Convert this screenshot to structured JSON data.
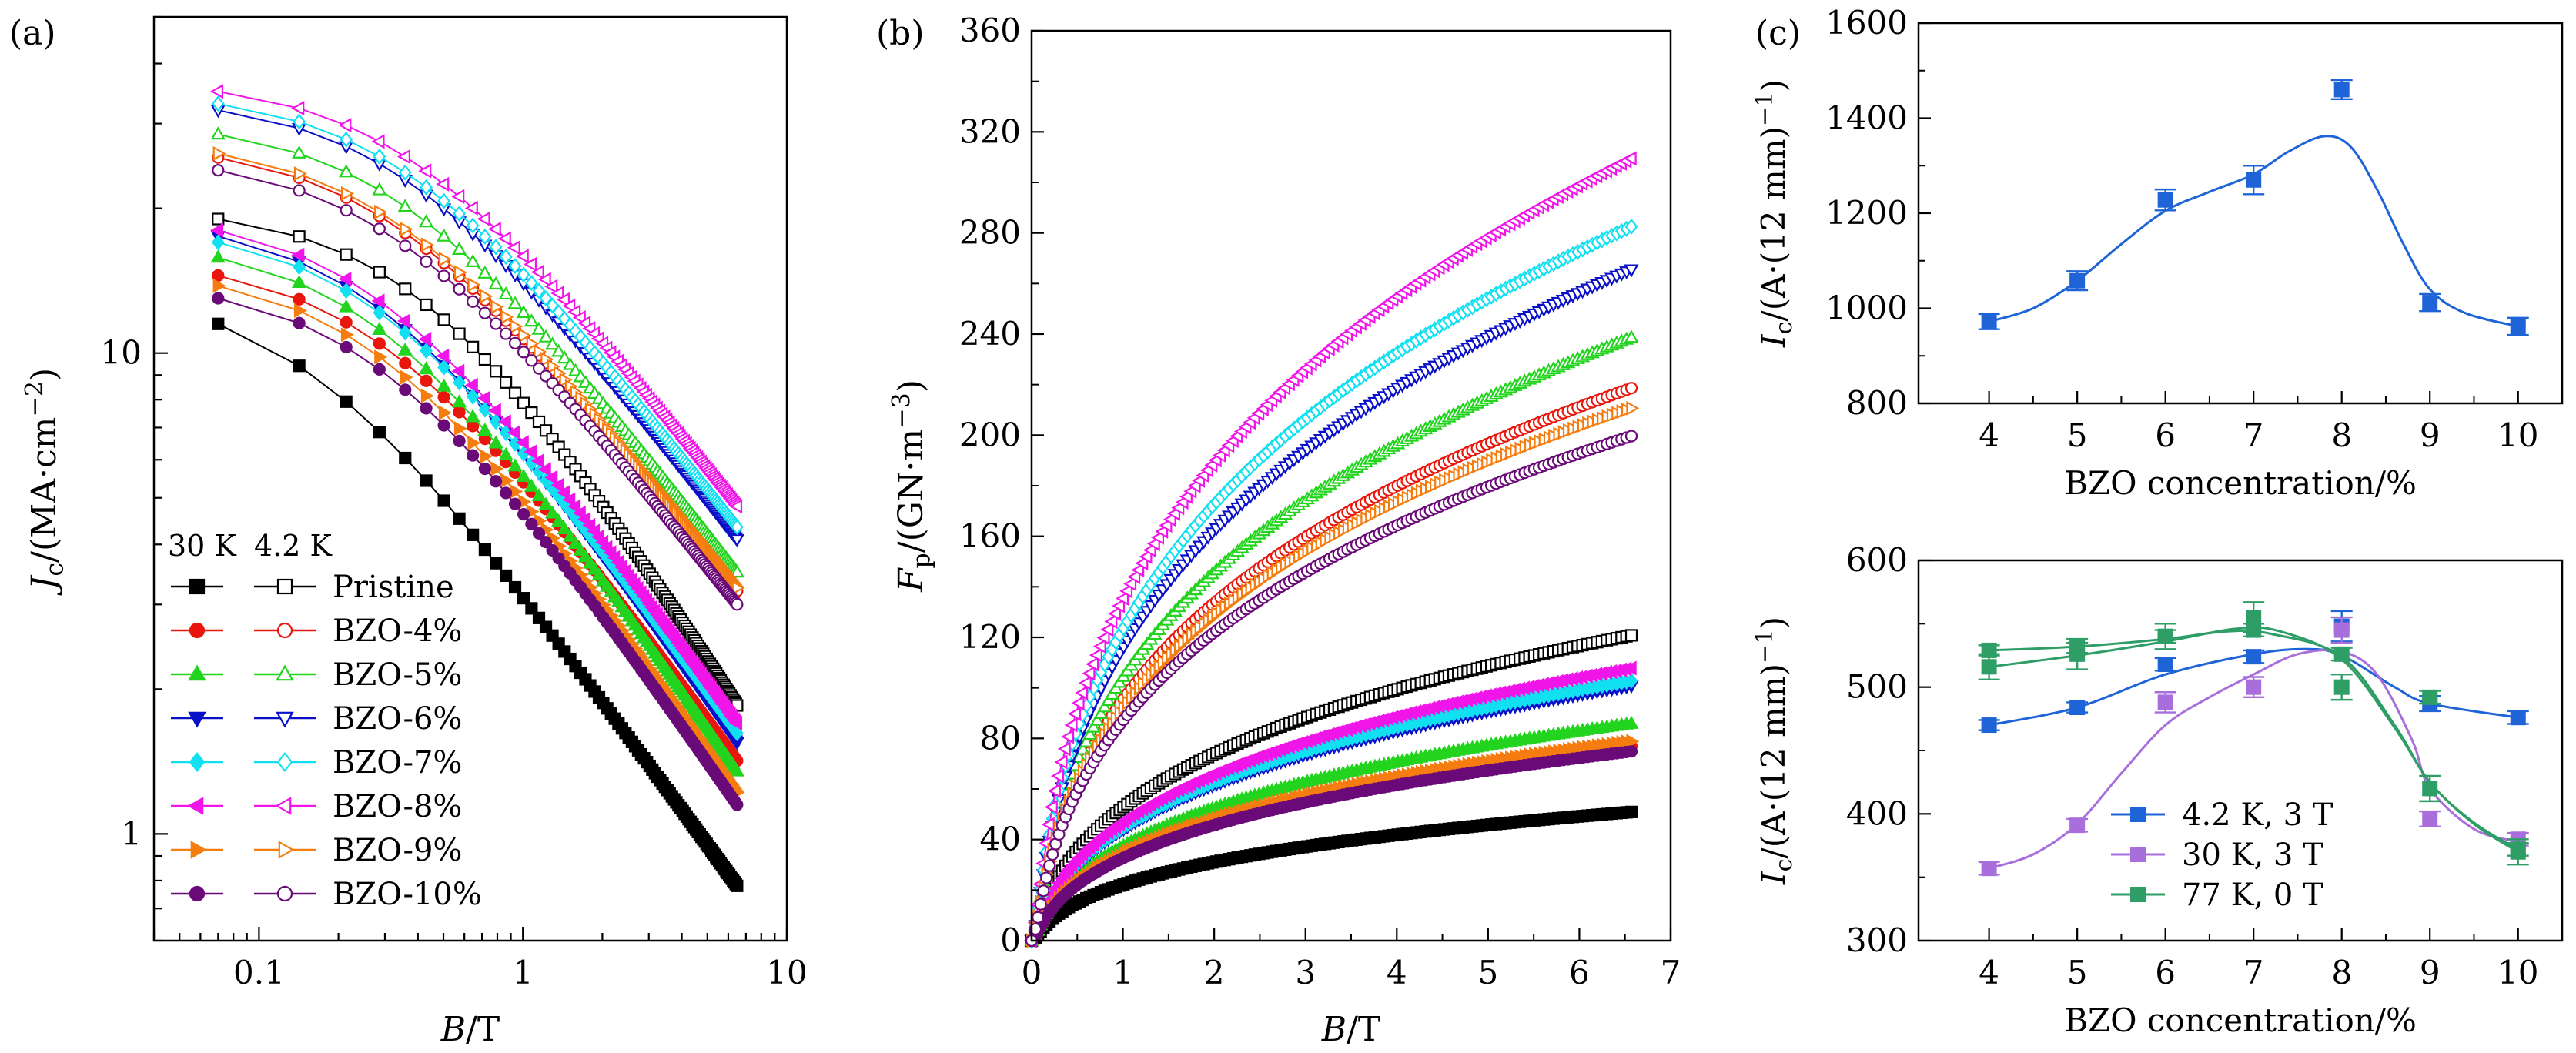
{
  "figure": {
    "panels": [
      "(a)",
      "(b)",
      "(c)"
    ]
  },
  "chart_data": [
    {
      "id": "a",
      "type": "line",
      "panel_label": "(a)",
      "xlabel_main": "B",
      "xlabel_unit": "/T",
      "ylabel_main": "J",
      "ylabel_sub": "c",
      "ylabel_unit": "/(MA·cm",
      "ylabel_sup": "−2",
      "ylabel_close": ")",
      "xscale": "log",
      "yscale": "log",
      "xlim": [
        0.04,
        10
      ],
      "ylim": [
        0.6,
        50
      ],
      "xticks": [
        {
          "v": 0.1,
          "label": "0.1"
        },
        {
          "v": 1,
          "label": "1"
        },
        {
          "v": 10,
          "label": "10"
        }
      ],
      "yticks": [
        {
          "v": 1,
          "label": "1"
        },
        {
          "v": 10,
          "label": "10"
        }
      ],
      "legend": {
        "position": "bottom-left",
        "header_left": "30 K",
        "header_right": "4.2 K"
      },
      "series": [
        {
          "name": "Pristine",
          "color": "#000000",
          "marker": "square",
          "jc30": {
            "a": 11.5,
            "b": 1.95,
            "k0": 0.15,
            "end": 0.78
          },
          "jc42": {
            "a": 19,
            "b": 2.65,
            "k0": 0.42,
            "end": 1.85
          }
        },
        {
          "name": "BZO-4%",
          "color": "#e8160c",
          "marker": "circle",
          "jc30": {
            "a": 14.5,
            "b": 3.0,
            "k0": 0.28,
            "end": 1.42
          },
          "jc42": {
            "a": 25.5,
            "b": 3.5,
            "k0": 0.3,
            "end": 3.2
          }
        },
        {
          "name": "BZO-5%",
          "color": "#22d41e",
          "marker": "triangle-up",
          "jc30": {
            "a": 15.8,
            "b": 2.7,
            "k0": 0.28,
            "end": 1.35
          },
          "jc42": {
            "a": 28.5,
            "b": 3.3,
            "k0": 0.33,
            "end": 3.5
          }
        },
        {
          "name": "BZO-6%",
          "color": "#0a10c8",
          "marker": "triangle-down",
          "jc30": {
            "a": 17.5,
            "b": 2.85,
            "k0": 0.27,
            "end": 1.55
          },
          "jc42": {
            "a": 32,
            "b": 3.4,
            "k0": 0.34,
            "end": 4.1
          }
        },
        {
          "name": "BZO-7%",
          "color": "#11e0f0",
          "marker": "diamond",
          "jc30": {
            "a": 17,
            "b": 2.85,
            "k0": 0.27,
            "end": 1.62
          },
          "jc42": {
            "a": 33,
            "b": 3.4,
            "k0": 0.34,
            "end": 4.35
          }
        },
        {
          "name": "BZO-8%",
          "color": "#f015e8",
          "marker": "triangle-left",
          "jc30": {
            "a": 18,
            "b": 2.85,
            "k0": 0.27,
            "end": 1.7
          },
          "jc42": {
            "a": 35,
            "b": 3.35,
            "k0": 0.36,
            "end": 4.8
          }
        },
        {
          "name": "BZO-9%",
          "color": "#f57d10",
          "marker": "triangle-right",
          "jc30": {
            "a": 13.8,
            "b": 2.95,
            "k0": 0.28,
            "end": 1.22
          },
          "jc42": {
            "a": 26,
            "b": 3.5,
            "k0": 0.3,
            "end": 3.25
          }
        },
        {
          "name": "BZO-10%",
          "color": "#6a0a78",
          "marker": "circle",
          "jc30": {
            "a": 13,
            "b": 2.9,
            "k0": 0.28,
            "end": 1.15
          },
          "jc42": {
            "a": 24,
            "b": 3.5,
            "k0": 0.3,
            "end": 3.0
          }
        }
      ]
    },
    {
      "id": "b",
      "type": "line",
      "panel_label": "(b)",
      "xlabel_main": "B",
      "xlabel_unit": "/T",
      "ylabel_main": "F",
      "ylabel_sub": "p",
      "ylabel_unit": "/(GN·m",
      "ylabel_sup": "−3",
      "ylabel_close": ")",
      "xlim": [
        0,
        7
      ],
      "ylim": [
        0,
        360
      ],
      "xticks": [
        0,
        1,
        2,
        3,
        4,
        5,
        6,
        7
      ],
      "yticks": [
        0,
        40,
        80,
        120,
        160,
        200,
        240,
        280,
        320,
        360
      ],
      "series": [
        {
          "name": "Pristine",
          "temp": "30 K",
          "color": "#000000",
          "marker": "square",
          "filled": true,
          "fp_end": 51
        },
        {
          "name": "Pristine",
          "temp": "4.2 K",
          "color": "#000000",
          "marker": "square",
          "filled": false,
          "fp_end": 121
        },
        {
          "name": "BZO-4%",
          "temp": "30 K",
          "color": "#e8160c",
          "marker": "circle",
          "filled": true,
          "fp_end": 77
        },
        {
          "name": "BZO-4%",
          "temp": "4.2 K",
          "color": "#e8160c",
          "marker": "circle",
          "filled": false,
          "fp_end": 219
        },
        {
          "name": "BZO-5%",
          "temp": "30 K",
          "color": "#22d41e",
          "marker": "triangle-up",
          "filled": true,
          "fp_end": 86
        },
        {
          "name": "BZO-5%",
          "temp": "4.2 K",
          "color": "#22d41e",
          "marker": "triangle-up",
          "filled": false,
          "fp_end": 239
        },
        {
          "name": "BZO-6%",
          "temp": "30 K",
          "color": "#0a10c8",
          "marker": "triangle-down",
          "filled": true,
          "fp_end": 101
        },
        {
          "name": "BZO-6%",
          "temp": "4.2 K",
          "color": "#0a10c8",
          "marker": "triangle-down",
          "filled": false,
          "fp_end": 266
        },
        {
          "name": "BZO-7%",
          "temp": "30 K",
          "color": "#11e0f0",
          "marker": "diamond",
          "filled": true,
          "fp_end": 103
        },
        {
          "name": "BZO-7%",
          "temp": "4.2 K",
          "color": "#11e0f0",
          "marker": "diamond",
          "filled": false,
          "fp_end": 283
        },
        {
          "name": "BZO-8%",
          "temp": "30 K",
          "color": "#f015e8",
          "marker": "triangle-left",
          "filled": true,
          "fp_end": 108
        },
        {
          "name": "BZO-8%",
          "temp": "4.2 K",
          "color": "#f015e8",
          "marker": "triangle-left",
          "filled": false,
          "fp_end": 310
        },
        {
          "name": "BZO-9%",
          "temp": "30 K",
          "color": "#f57d10",
          "marker": "triangle-right",
          "filled": true,
          "fp_end": 79
        },
        {
          "name": "BZO-9%",
          "temp": "4.2 K",
          "color": "#f57d10",
          "marker": "triangle-right",
          "filled": false,
          "fp_end": 211
        },
        {
          "name": "BZO-10%",
          "temp": "30 K",
          "color": "#6a0a78",
          "marker": "circle",
          "filled": true,
          "fp_end": 75
        },
        {
          "name": "BZO-10%",
          "temp": "4.2 K",
          "color": "#6a0a78",
          "marker": "circle",
          "filled": false,
          "fp_end": 200
        }
      ]
    },
    {
      "id": "c_top",
      "type": "scatter",
      "panel_label": "(c)",
      "xlabel": "BZO  concentration/%",
      "ylabel_main": "I",
      "ylabel_sub": "c",
      "ylabel_unit": "/(A·(12 mm)",
      "ylabel_sup": "−1",
      "ylabel_close": ")",
      "xlim": [
        3.2,
        10.5
      ],
      "ylim": [
        800,
        1600
      ],
      "xticks": [
        4,
        5,
        6,
        7,
        8,
        9,
        10
      ],
      "yticks": [
        800,
        1000,
        1200,
        1400,
        1600
      ],
      "series": [
        {
          "color": "#1f64d6",
          "x": [
            4,
            5,
            6,
            7,
            8,
            9,
            10
          ],
          "y": [
            972,
            1058,
            1228,
            1270,
            1460,
            1012,
            962
          ],
          "err": [
            16,
            20,
            22,
            30,
            20,
            18,
            18
          ],
          "fit": [
            [
              4,
              972
            ],
            [
              4.5,
              1000
            ],
            [
              5,
              1058
            ],
            [
              5.5,
              1135
            ],
            [
              6,
              1205
            ],
            [
              6.5,
              1245
            ],
            [
              7,
              1282
            ],
            [
              7.4,
              1330
            ],
            [
              7.8,
              1362
            ],
            [
              8.1,
              1340
            ],
            [
              8.4,
              1250
            ],
            [
              8.7,
              1135
            ],
            [
              9,
              1040
            ],
            [
              9.4,
              990
            ],
            [
              10,
              962
            ]
          ]
        }
      ]
    },
    {
      "id": "c_bottom",
      "type": "scatter",
      "xlabel": "BZO  concentration/%",
      "ylabel_main": "I",
      "ylabel_sub": "c",
      "ylabel_unit": "/(A·(12 mm)",
      "ylabel_sup": "−1",
      "ylabel_close": ")",
      "xlim": [
        3.2,
        10.5
      ],
      "ylim": [
        300,
        600
      ],
      "xticks": [
        4,
        5,
        6,
        7,
        8,
        9,
        10
      ],
      "yticks": [
        300,
        400,
        500,
        600
      ],
      "legend": {
        "position": "bottom-left"
      },
      "series": [
        {
          "name": "4.2 K, 3 T",
          "color": "#1f64d6",
          "x": [
            4,
            5,
            6,
            7,
            8,
            9,
            10
          ],
          "y": [
            470,
            484,
            518,
            524,
            548,
            487,
            476
          ],
          "err": [
            4,
            4,
            5,
            5,
            12,
            6,
            5
          ],
          "fit": [
            [
              4,
              470
            ],
            [
              5,
              484
            ],
            [
              6,
              510
            ],
            [
              7,
              526
            ],
            [
              7.6,
              530
            ],
            [
              8,
              525
            ],
            [
              8.6,
              500
            ],
            [
              9,
              487
            ],
            [
              10,
              476
            ]
          ]
        },
        {
          "name": "30 K, 3 T",
          "color": "#a86fdc",
          "x": [
            4,
            5,
            6,
            7,
            8,
            9,
            10
          ],
          "y": [
            357,
            391,
            488,
            500,
            545,
            396,
            380
          ],
          "err": [
            5,
            5,
            8,
            8,
            10,
            6,
            5
          ],
          "fit": [
            [
              4,
              357
            ],
            [
              4.5,
              368
            ],
            [
              5,
              392
            ],
            [
              5.5,
              432
            ],
            [
              6,
              470
            ],
            [
              6.5,
              492
            ],
            [
              7,
              510
            ],
            [
              7.5,
              526
            ],
            [
              8,
              528
            ],
            [
              8.4,
              510
            ],
            [
              8.8,
              458
            ],
            [
              9,
              420
            ],
            [
              9.5,
              388
            ],
            [
              10,
              378
            ]
          ]
        },
        {
          "name": "77 K, 0 T",
          "color": "#2e9e66",
          "x": [
            4,
            5,
            6,
            7,
            8,
            9,
            10
          ],
          "y": [
            529,
            531,
            540,
            545,
            526,
            492,
            372
          ],
          "err": [
            4,
            4,
            5,
            5,
            5,
            5,
            5
          ],
          "fit": [
            [
              4,
              529
            ],
            [
              5,
              532
            ],
            [
              6,
              538
            ],
            [
              6.7,
              544
            ],
            [
              7.2,
              542
            ],
            [
              8,
              524
            ],
            [
              8.6,
              470
            ],
            [
              9,
              425
            ],
            [
              9.5,
              393
            ],
            [
              10,
              372
            ]
          ]
        },
        {
          "name": "",
          "color": "#2e9e66",
          "x": [
            4,
            5,
            6,
            7,
            8,
            9,
            10
          ],
          "y": [
            516,
            526,
            540,
            555,
            500,
            420,
            370
          ],
          "err": [
            10,
            12,
            10,
            12,
            10,
            10,
            10
          ],
          "fit": [
            [
              4,
              516
            ],
            [
              5,
              525
            ],
            [
              6,
              536
            ],
            [
              6.8,
              546
            ],
            [
              7.3,
              544
            ],
            [
              8,
              522
            ],
            [
              8.6,
              468
            ],
            [
              9,
              425
            ],
            [
              9.5,
              392
            ],
            [
              10,
              370
            ]
          ]
        }
      ]
    }
  ]
}
